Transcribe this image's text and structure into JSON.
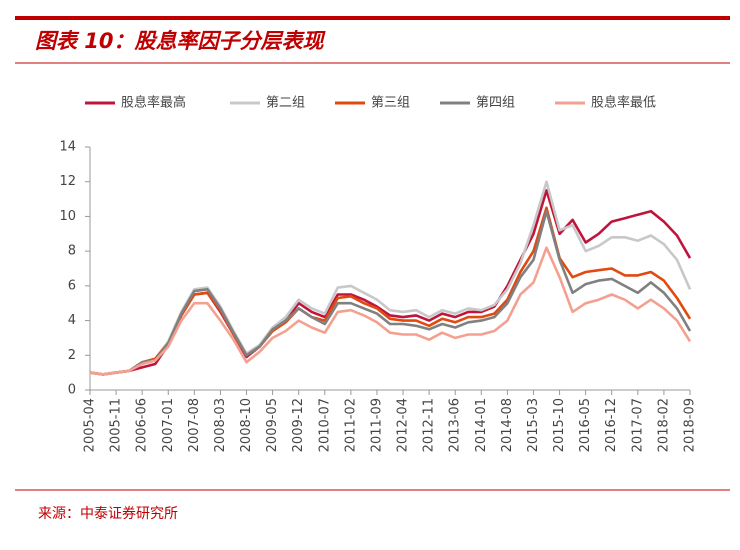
{
  "chart_data": {
    "type": "line",
    "title": "图表 10：股息率因子分层表现",
    "source": "来源：中泰证券研究所",
    "categories": [
      "2005-04",
      null,
      "2005-11",
      null,
      "2006-06",
      null,
      "2007-01",
      null,
      "2007-08",
      null,
      "2008-03",
      null,
      "2008-10",
      null,
      "2009-05",
      null,
      "2009-12",
      null,
      "2010-07",
      null,
      "2011-02",
      null,
      "2011-09",
      null,
      "2012-04",
      null,
      "2012-11",
      null,
      "2013-06",
      null,
      "2014-01",
      null,
      "2014-08",
      null,
      "2015-03",
      null,
      "2015-10",
      null,
      "2016-05",
      null,
      "2016-12",
      null,
      "2017-07",
      null,
      "2018-02",
      null,
      "2018-09"
    ],
    "series": [
      {
        "name": "股息率最高",
        "color": "#c0143c",
        "values": [
          1.0,
          0.9,
          1.0,
          1.1,
          1.3,
          1.5,
          2.6,
          4.3,
          5.5,
          5.6,
          4.5,
          3.2,
          1.9,
          2.5,
          3.5,
          4.0,
          5.0,
          4.5,
          4.2,
          5.5,
          5.5,
          5.2,
          4.8,
          4.3,
          4.2,
          4.3,
          4.0,
          4.4,
          4.2,
          4.5,
          4.5,
          4.8,
          6.0,
          7.5,
          9.0,
          11.5,
          9.0,
          9.8,
          8.5,
          9.0,
          9.7,
          9.9,
          10.1,
          10.3,
          9.7,
          8.9,
          7.6
        ]
      },
      {
        "name": "第二组",
        "color": "#c8c8c8",
        "values": [
          1.0,
          0.9,
          1.0,
          1.1,
          1.6,
          1.8,
          2.8,
          4.5,
          5.8,
          5.9,
          4.8,
          3.4,
          2.1,
          2.6,
          3.6,
          4.2,
          5.2,
          4.7,
          4.4,
          5.9,
          6.0,
          5.6,
          5.2,
          4.6,
          4.5,
          4.6,
          4.2,
          4.6,
          4.4,
          4.7,
          4.6,
          4.9,
          5.8,
          7.3,
          9.5,
          12.0,
          9.2,
          9.5,
          8.0,
          8.3,
          8.8,
          8.8,
          8.6,
          8.9,
          8.4,
          7.5,
          5.8
        ]
      },
      {
        "name": "第三组",
        "color": "#e04a10",
        "values": [
          1.0,
          0.9,
          1.0,
          1.1,
          1.6,
          1.8,
          2.7,
          4.3,
          5.5,
          5.6,
          4.6,
          3.2,
          2.0,
          2.5,
          3.4,
          3.9,
          4.7,
          4.2,
          4.0,
          5.3,
          5.4,
          5.0,
          4.7,
          4.1,
          4.0,
          4.0,
          3.7,
          4.1,
          3.9,
          4.2,
          4.2,
          4.4,
          5.2,
          6.8,
          8.0,
          10.5,
          7.6,
          6.5,
          6.8,
          6.9,
          7.0,
          6.6,
          6.6,
          6.8,
          6.3,
          5.3,
          4.1
        ]
      },
      {
        "name": "第四组",
        "color": "#808080",
        "values": [
          1.0,
          0.9,
          1.0,
          1.1,
          1.6,
          1.7,
          2.7,
          4.4,
          5.7,
          5.8,
          4.7,
          3.3,
          2.0,
          2.5,
          3.5,
          4.0,
          4.7,
          4.2,
          3.8,
          5.0,
          5.0,
          4.7,
          4.4,
          3.8,
          3.8,
          3.7,
          3.5,
          3.8,
          3.6,
          3.9,
          4.0,
          4.2,
          5.0,
          6.5,
          7.5,
          10.3,
          7.5,
          5.6,
          6.1,
          6.3,
          6.4,
          6.0,
          5.6,
          6.2,
          5.6,
          4.7,
          3.4
        ]
      },
      {
        "name": "股息率最低",
        "color": "#f4a090",
        "values": [
          1.0,
          0.9,
          1.0,
          1.1,
          1.5,
          1.7,
          2.5,
          4.0,
          5.0,
          5.0,
          4.0,
          2.9,
          1.6,
          2.2,
          3.0,
          3.4,
          4.0,
          3.6,
          3.3,
          4.5,
          4.6,
          4.3,
          3.9,
          3.3,
          3.2,
          3.2,
          2.9,
          3.3,
          3.0,
          3.2,
          3.2,
          3.4,
          4.0,
          5.5,
          6.2,
          8.2,
          6.5,
          4.5,
          5.0,
          5.2,
          5.5,
          5.2,
          4.7,
          5.2,
          4.7,
          4.0,
          2.8
        ]
      }
    ],
    "ylim": [
      0,
      14
    ],
    "yticks": [
      0,
      2,
      4,
      6,
      8,
      10,
      12,
      14
    ]
  }
}
